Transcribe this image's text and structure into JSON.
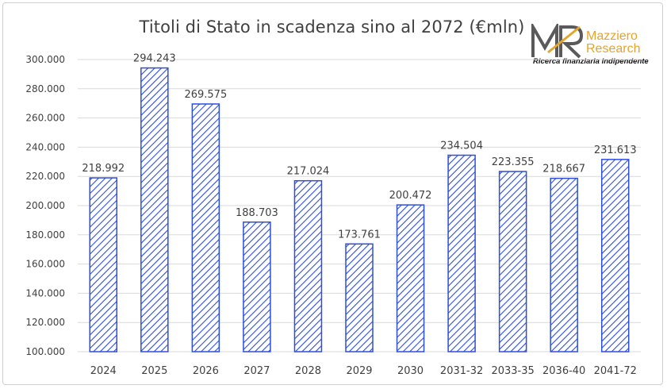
{
  "logo": {
    "mark": "MR",
    "name_line1": "Mazziero",
    "name_line2": "Research",
    "tagline": "Ricerca finanziaria indipendente"
  },
  "colors": {
    "bar_stroke": "#2e4ed8",
    "bar_hatch": "#2e4ed8",
    "grid": "#d9d9d9",
    "text": "#404040",
    "logo_accent": "#e5a42b",
    "logo_mark": "#5a5a5a"
  },
  "chart_data": {
    "type": "bar",
    "title": "Titoli di Stato in scadenza sino al 2072 (€mln)",
    "categories": [
      "2024",
      "2025",
      "2026",
      "2027",
      "2028",
      "2029",
      "2030",
      "2031-32",
      "2033-35",
      "2036-40",
      "2041-72"
    ],
    "values": [
      218992,
      294243,
      269575,
      188703,
      217024,
      173761,
      200472,
      234504,
      223355,
      218667,
      231613
    ],
    "value_labels": [
      "218.992",
      "294.243",
      "269.575",
      "188.703",
      "217.024",
      "173.761",
      "200.472",
      "234.504",
      "223.355",
      "218.667",
      "231.613"
    ],
    "ylim": [
      100000,
      300000
    ],
    "yticks": [
      100000,
      120000,
      140000,
      160000,
      180000,
      200000,
      220000,
      240000,
      260000,
      280000,
      300000
    ],
    "ytick_labels": [
      "100.000",
      "120.000",
      "140.000",
      "160.000",
      "180.000",
      "200.000",
      "220.000",
      "240.000",
      "260.000",
      "280.000",
      "300.000"
    ],
    "grid": true,
    "legend": "none",
    "fill": "diagonal hatch"
  }
}
